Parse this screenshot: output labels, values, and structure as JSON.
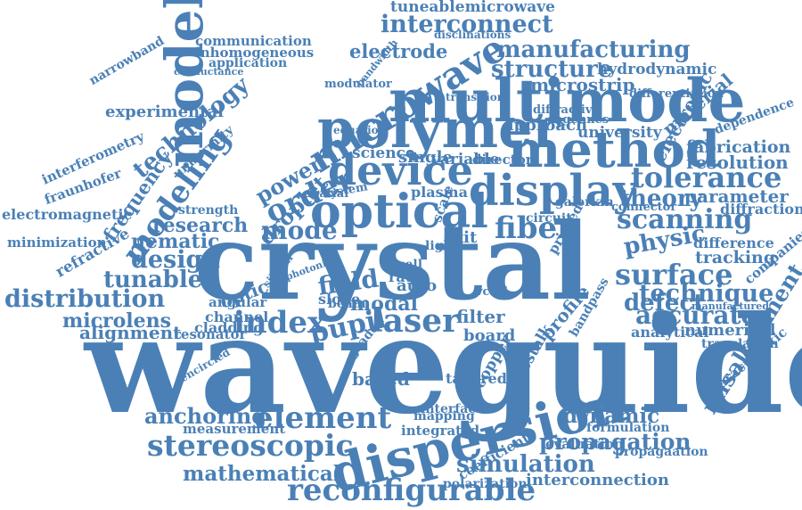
{
  "color": "#4a80b6",
  "words": [
    "waveguide",
    "crystal",
    "modelling",
    "multimode",
    "polymer",
    "method",
    "optical",
    "device",
    "dispersion",
    "microwave",
    "display",
    "element",
    "stereoscopic",
    "reconfigurable",
    "manufacturing",
    "interconnect",
    "tuneablemicrowave",
    "structure",
    "laser",
    "pupil",
    "index",
    "fiber",
    "scanning",
    "tolerance",
    "surface",
    "accurate",
    "technique",
    "modeling",
    "technology",
    "frequency",
    "order",
    "droplet",
    "mode",
    "design",
    "tunable",
    "distribution",
    "microlens",
    "alignment",
    "nematic",
    "research",
    "misalignment",
    "dynamic",
    "propagation",
    "simulation",
    "anchoring",
    "mathematical",
    "interconnection",
    "defect",
    "physic",
    "theory",
    "parameter",
    "resolution",
    "fabrication",
    "electronic",
    "material",
    "field",
    "optic",
    "modal",
    "filter",
    "profile",
    "board",
    "based",
    "crosstalk",
    "electrode",
    "microstrip",
    "hydrodynamic",
    "experimental",
    "communication",
    "inhomogeneous",
    "application",
    "interferometry",
    "electromagnetic",
    "refractive",
    "approach",
    "university",
    "diffraction",
    "tracking",
    "difference",
    "numerical",
    "analytical",
    "translation",
    "characteristic",
    "companies",
    "measurement",
    "integrated",
    "coefficient",
    "polarization",
    "evaluation",
    "formulation",
    "propagaation",
    "interface",
    "mapping",
    "tapered",
    "copper",
    "cladding",
    "channel",
    "angular",
    "resonator",
    "fraunhofer",
    "minimization",
    "narrowband",
    "uniformity",
    "strength",
    "power",
    "plasma",
    "single",
    "variable",
    "science",
    "spatial",
    "system",
    "director",
    "galerkin",
    "circuit",
    "connector",
    "printed",
    "bandpass",
    "rate",
    "auto",
    "slope",
    "cell",
    "scale",
    "light",
    "exit",
    "degennes",
    "diffractive",
    "differentiation",
    "dependence",
    "manufactured",
    "modulator",
    "disclinations",
    "conductance",
    "transition",
    "equation",
    "bandwidth",
    "graded",
    "vcsel",
    "beam",
    "silicon",
    "photonic",
    "encircled"
  ]
}
